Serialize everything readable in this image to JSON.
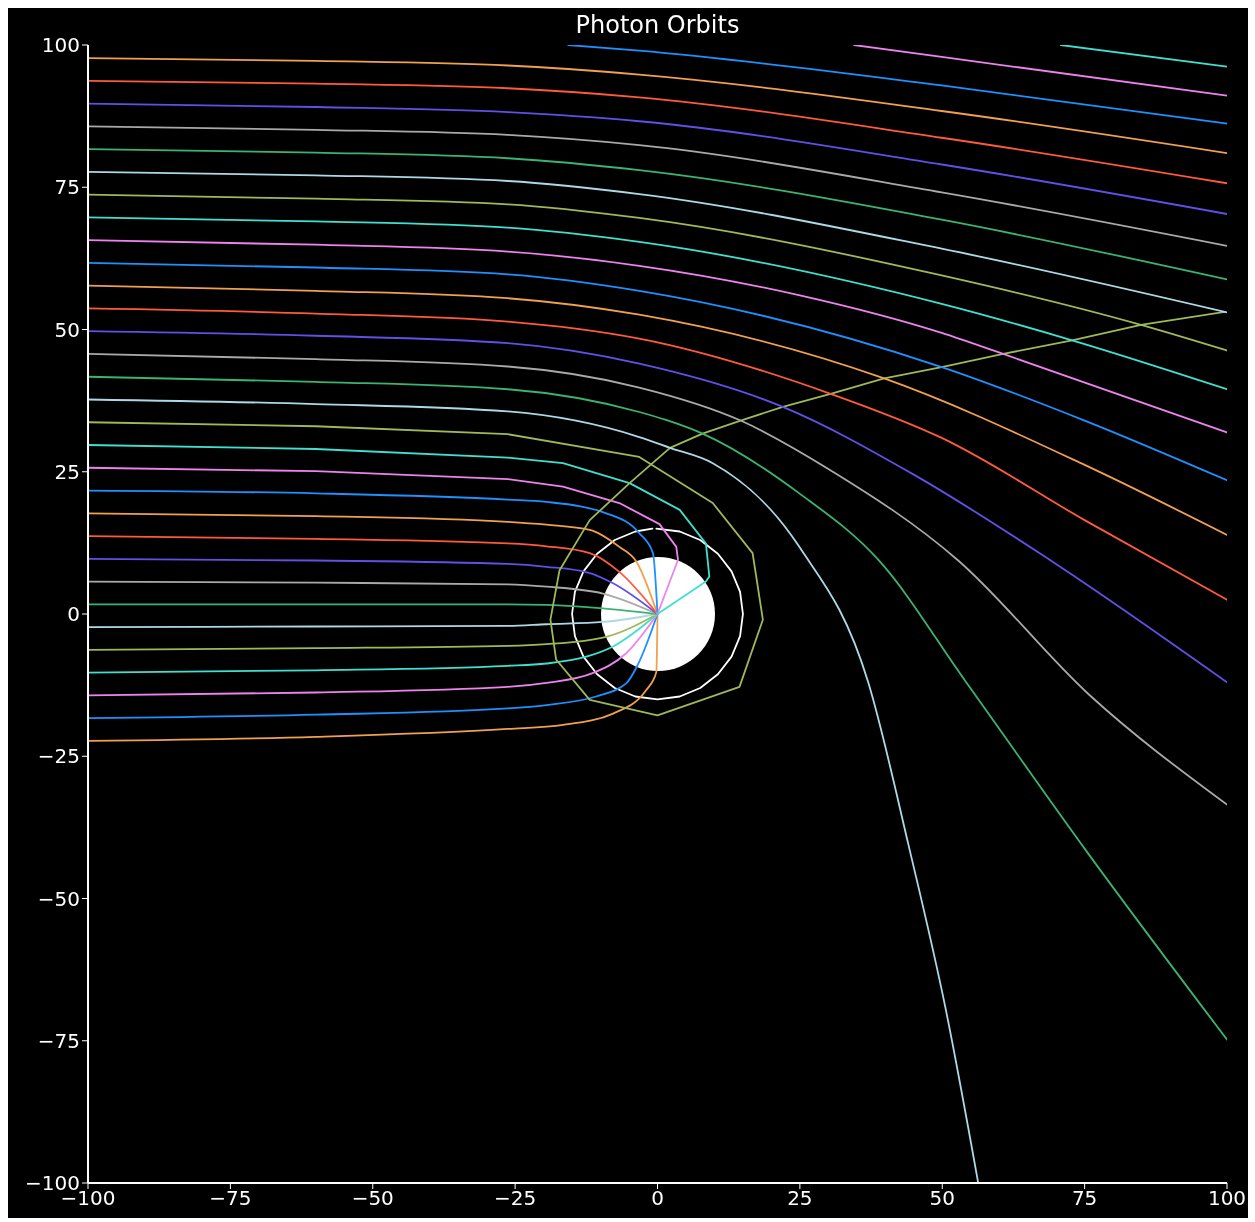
{
  "chart_data": {
    "type": "line",
    "title": "Photon Orbits",
    "marker": "none",
    "xlim": [
      -100,
      100
    ],
    "ylim": [
      -100,
      100
    ],
    "xticks": [
      {
        "value": -100,
        "label": "−100"
      },
      {
        "value": -75,
        "label": "−75"
      },
      {
        "value": -50,
        "label": "−50"
      },
      {
        "value": -25,
        "label": "−25"
      },
      0,
      25,
      50,
      75,
      100
    ],
    "yticks": [
      {
        "value": -100,
        "label": "−100"
      },
      {
        "value": -75,
        "label": "−75"
      },
      {
        "value": -50,
        "label": "−50"
      },
      {
        "value": -25,
        "label": "−25"
      },
      0,
      25,
      50,
      75,
      100
    ],
    "series": [
      {
        "color": "#ffffff",
        "x": [
          -0.2,
          3.9,
          7.5,
          10.6,
          13.0,
          14.5,
          15,
          14.5,
          13.0,
          10.6,
          7.5,
          3.9,
          0,
          -3.9,
          -7.5,
          -10.6,
          -13.0,
          -14.5,
          -15,
          -14.5,
          -13.0,
          -10.6,
          -7.5,
          -3.9,
          -0.9
        ],
        "values": [
          15,
          14.5,
          13.0,
          10.6,
          7.5,
          3.9,
          0,
          -3.9,
          -7.5,
          -10.6,
          -13.0,
          -14.5,
          -15,
          -14.5,
          -13.0,
          -10.6,
          -7.5,
          -3.9,
          0,
          3.9,
          7.5,
          10.6,
          13.0,
          14.5,
          15
        ]
      },
      {
        "color": "#f0a050",
        "x": [
          -100,
          -60,
          -26.3,
          -16.6,
          -7.8,
          -2.0,
          -0.2,
          0
        ],
        "values": [
          -22.3,
          -21.6,
          -20.2,
          -19.5,
          -17.5,
          -13.4,
          -10.2,
          0
        ]
      },
      {
        "color": "#1e90ff",
        "x": [
          -100,
          -60,
          -26.3,
          -19.5,
          -10.8,
          -5.5,
          -3.5,
          0
        ],
        "values": [
          -18.3,
          -17.7,
          -16.6,
          -16.0,
          -14.5,
          -12.2,
          -9.0,
          0
        ]
      },
      {
        "color": "#ee82ee",
        "x": [
          -100,
          -60,
          -26.3,
          -19.5,
          -11.4,
          -5.5,
          0
        ],
        "values": [
          -14.3,
          -13.8,
          -12.8,
          -12.1,
          -10.4,
          -6.9,
          0
        ]
      },
      {
        "color": "#40e0d0",
        "x": [
          -100,
          -60,
          -26.3,
          -19.5,
          -12.5,
          -7.8,
          0
        ],
        "values": [
          -10.3,
          -9.9,
          -9.1,
          -8.7,
          -7.5,
          -5.7,
          0
        ]
      },
      {
        "color": "#9fb85a",
        "x": [
          -100,
          -60,
          -26.3,
          -19.5,
          -9.0,
          0
        ],
        "values": [
          -6.3,
          -6.0,
          -5.6,
          -5.3,
          -4.0,
          0
        ]
      },
      {
        "color": "#add8e6",
        "x": [
          -100,
          -60,
          -26.3,
          -19.5,
          -9.6,
          0
        ],
        "values": [
          -2.3,
          -2.2,
          -2.1,
          -1.8,
          -1.4,
          0
        ]
      },
      {
        "color": "#3cb371",
        "x": [
          -100,
          -60,
          -26.3,
          -19.5,
          -9.6,
          0
        ],
        "values": [
          1.7,
          1.7,
          1.7,
          1.6,
          1.0,
          0
        ]
      },
      {
        "color": "#a9a9a9",
        "x": [
          -100,
          -60,
          -26.3,
          -19.5,
          -9.6,
          0
        ],
        "values": [
          5.7,
          5.5,
          5.2,
          4.8,
          3.6,
          0
        ]
      },
      {
        "color": "#6050e8",
        "x": [
          -100,
          -60,
          -26.3,
          -19.5,
          -11.9,
          -7.8,
          0
        ],
        "values": [
          9.7,
          9.4,
          8.8,
          8.3,
          7.2,
          5.4,
          0
        ]
      },
      {
        "color": "#ff5a3c",
        "x": [
          -100,
          -60,
          -26.3,
          -19.5,
          -11.9,
          -6.7,
          0
        ],
        "values": [
          13.7,
          13.2,
          12.4,
          11.9,
          10.7,
          7.4,
          0
        ]
      },
      {
        "color": "#f0a050",
        "x": [
          -100,
          -60,
          -26.3,
          -19.5,
          -11.9,
          -6.7,
          -3.7,
          0
        ],
        "values": [
          17.7,
          17.2,
          16.2,
          15.7,
          14.8,
          11.8,
          9.2,
          0
        ]
      },
      {
        "color": "#1e90ff",
        "x": [
          -100,
          -60,
          -26.3,
          -19.5,
          -9.0,
          -3.2,
          -0.8,
          0
        ],
        "values": [
          21.7,
          21.2,
          20.1,
          19.7,
          17.7,
          14.2,
          10.7,
          0
        ]
      },
      {
        "color": "#ee82ee",
        "x": [
          -100,
          -60,
          -26.3,
          -16.6,
          -6.7,
          0.35,
          3.3,
          3.6,
          0
        ],
        "values": [
          25.7,
          25.1,
          23.7,
          22.4,
          19.5,
          15.8,
          11.8,
          9.5,
          0
        ]
      },
      {
        "color": "#40e0d0",
        "x": [
          -100,
          -60,
          -26.3,
          -16.6,
          -4.9,
          3.9,
          8.5,
          9.1,
          8.5,
          0
        ],
        "values": [
          29.7,
          29.0,
          27.5,
          26.5,
          23.0,
          18.3,
          12.4,
          6.6,
          5.7,
          0
        ]
      },
      {
        "color": "#9fb85a",
        "x": [
          -100,
          -60,
          -26.3,
          -3.2,
          9.7,
          16.7,
          18.5,
          14.4,
          0,
          -11.9,
          -17.8,
          -18.8,
          -17.2,
          -11.9,
          -4.9,
          2.2,
          7.9,
          14.6,
          22.0,
          30.4,
          39.8,
          49.9,
          60.7,
          72.8,
          84.9,
          99.6
        ],
        "values": [
          33.7,
          33.0,
          31.6,
          27.6,
          19.5,
          10.7,
          -1.0,
          -12.8,
          -17.8,
          -15.1,
          -8.0,
          -1.0,
          7.7,
          16.5,
          23.0,
          29.2,
          31.7,
          34.0,
          36.4,
          38.7,
          41.4,
          43.4,
          45.7,
          48.1,
          50.8,
          53.1
        ]
      },
      {
        "color": "#add8e6",
        "x": [
          -100,
          -60,
          -26.3,
          -3.2,
          2.2,
          9.7,
          24.9,
          37.0,
          44.1,
          50.6,
          56.3
        ],
        "values": [
          37.7,
          36.9,
          35.6,
          31.1,
          29.2,
          26.5,
          11.8,
          -12.0,
          -40.7,
          -69.4,
          -99.9
        ]
      },
      {
        "color": "#3cb371",
        "x": [
          -100,
          -60,
          -26.3,
          -3.2,
          1.5,
          7.9,
          24.9,
          38.8,
          54.2,
          75.7,
          100
        ],
        "values": [
          41.7,
          40.8,
          39.5,
          35.5,
          34.1,
          31.7,
          21.2,
          9.5,
          -12.0,
          -42.2,
          -74.8
        ]
      },
      {
        "color": "#a9a9a9",
        "x": [
          -100,
          -60,
          -26.3,
          -3.2,
          14.6,
          30,
          52.7,
          75.7,
          100
        ],
        "values": [
          45.7,
          44.8,
          43.5,
          39.8,
          34.0,
          25.5,
          9.5,
          -14.1,
          -33.5
        ]
      },
      {
        "color": "#6050e8",
        "x": [
          -100,
          -60,
          -26.3,
          -3.2,
          22.0,
          45,
          68.9,
          100
        ],
        "values": [
          49.7,
          48.9,
          47.6,
          44.0,
          36.4,
          24.5,
          9.5,
          -12.0
        ]
      },
      {
        "color": "#ff5a3c",
        "x": [
          -100,
          -60,
          -26.3,
          -3.2,
          30.4,
          50,
          75,
          100
        ],
        "values": [
          53.7,
          52.8,
          51.4,
          48.4,
          38.7,
          30.9,
          16.5,
          2.5
        ]
      },
      {
        "color": "#f0a050",
        "x": [
          -100,
          -60,
          -26.3,
          -3.2,
          39.8,
          75,
          100
        ],
        "values": [
          57.7,
          56.8,
          55.5,
          52.6,
          41.4,
          26.2,
          13.9
        ]
      },
      {
        "color": "#1e90ff",
        "x": [
          -100,
          -60,
          -26.3,
          -3.2,
          49.9,
          75,
          100
        ],
        "values": [
          61.7,
          60.9,
          59.7,
          56.8,
          43.4,
          34.0,
          23.5
        ]
      },
      {
        "color": "#ee82ee",
        "x": [
          -100,
          -60,
          -26.3,
          -3.2,
          25,
          49.9,
          60.7,
          100
        ],
        "values": [
          65.7,
          64.9,
          63.7,
          61.2,
          56.0,
          49.4,
          45.7,
          31.9
        ]
      },
      {
        "color": "#40e0d0",
        "x": [
          -100,
          -60,
          -26.3,
          -3.2,
          49.9,
          72.8,
          100
        ],
        "values": [
          69.7,
          69.0,
          67.9,
          65.4,
          54.5,
          48.1,
          39.5
        ]
      },
      {
        "color": "#9fb85a",
        "x": [
          -100,
          -60,
          -26.3,
          -3.2,
          49.9,
          84.9,
          100
        ],
        "values": [
          73.7,
          73.0,
          72.0,
          69.6,
          59.5,
          50.8,
          46.3
        ]
      },
      {
        "color": "#add8e6",
        "x": [
          -100,
          -60,
          -26.3,
          -3.2,
          49.9,
          100
        ],
        "values": [
          77.7,
          77.1,
          76.1,
          73.8,
          64.2,
          53.0
        ]
      },
      {
        "color": "#3cb371",
        "x": [
          -100,
          -60,
          -26.3,
          -3.2,
          49.9,
          100
        ],
        "values": [
          81.7,
          81.1,
          80.1,
          78.0,
          69.3,
          58.8
        ]
      },
      {
        "color": "#a9a9a9",
        "x": [
          -100,
          -60,
          -26.3,
          -3.2,
          49.9,
          100
        ],
        "values": [
          85.7,
          85.1,
          84.2,
          82.4,
          74.1,
          64.7
        ]
      },
      {
        "color": "#6050e8",
        "x": [
          -100,
          -60,
          -26.3,
          -3.2,
          49.9,
          100
        ],
        "values": [
          89.7,
          89.1,
          88.2,
          86.6,
          79.0,
          70.3
        ]
      },
      {
        "color": "#ff5a3c",
        "x": [
          -100,
          -60,
          -26.3,
          -3.2,
          49.9,
          100
        ],
        "values": [
          93.7,
          93.2,
          92.4,
          90.8,
          83.7,
          75.7
        ]
      },
      {
        "color": "#f0a050",
        "x": [
          -100,
          -60,
          -26.3,
          -3.2,
          49.9,
          100
        ],
        "values": [
          97.7,
          97.2,
          96.4,
          94.8,
          88.4,
          81.0
        ]
      },
      {
        "color": "#1e90ff",
        "x": [
          -15.7,
          -3.2,
          49.9,
          100
        ],
        "values": [
          100,
          99.0,
          92.9,
          86.2
        ]
      },
      {
        "color": "#ee82ee",
        "x": [
          34.5,
          49.9,
          100
        ],
        "values": [
          100,
          97.9,
          91.1
        ]
      },
      {
        "color": "#40e0d0",
        "x": [
          70.8,
          100
        ],
        "values": [
          100,
          96.2
        ]
      }
    ]
  }
}
